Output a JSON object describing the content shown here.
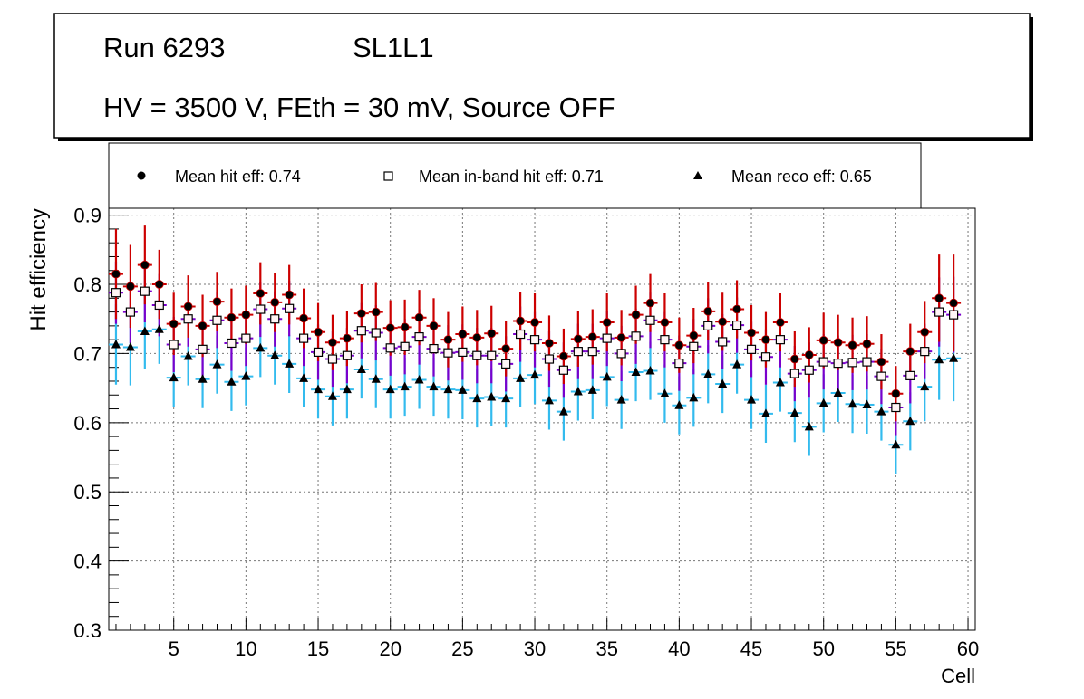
{
  "header": {
    "run_label": "Run 6293",
    "layer_label": "SL1L1",
    "conditions": "HV = 3500 V, FEth = 30 mV, Source OFF"
  },
  "legend": {
    "hit_label": "Mean hit  eff: 0.74",
    "inband_label": "Mean in-band hit eff: 0.71",
    "reco_label": "Mean reco eff: 0.65"
  },
  "chart_data": {
    "type": "scatter",
    "title": "Run 6293 SL1L1",
    "xlabel": "Cell",
    "ylabel": "Hit efficiency",
    "xlim": [
      0.5,
      60.5
    ],
    "ylim": [
      0.3,
      0.91
    ],
    "xticks": [
      5,
      10,
      15,
      20,
      25,
      30,
      35,
      40,
      45,
      50,
      55,
      60
    ],
    "yticks": [
      0.3,
      0.4,
      0.5,
      0.6,
      0.7,
      0.8,
      0.9
    ],
    "x": [
      1,
      2,
      3,
      4,
      5,
      6,
      7,
      8,
      9,
      10,
      11,
      12,
      13,
      14,
      15,
      16,
      17,
      18,
      19,
      20,
      21,
      22,
      23,
      24,
      25,
      26,
      27,
      28,
      29,
      30,
      31,
      32,
      33,
      34,
      35,
      36,
      37,
      38,
      39,
      40,
      41,
      42,
      43,
      44,
      45,
      46,
      47,
      48,
      49,
      50,
      51,
      52,
      53,
      54,
      55,
      56,
      57,
      58,
      59
    ],
    "series": [
      {
        "name": "Mean hit  eff: 0.74",
        "marker": "circle",
        "color": "#000000",
        "error_color": "#cc0000",
        "values": [
          0.815,
          0.797,
          0.828,
          0.8,
          0.743,
          0.768,
          0.74,
          0.775,
          0.752,
          0.756,
          0.787,
          0.774,
          0.785,
          0.751,
          0.731,
          0.716,
          0.722,
          0.758,
          0.76,
          0.737,
          0.738,
          0.752,
          0.74,
          0.72,
          0.728,
          0.723,
          0.729,
          0.707,
          0.747,
          0.745,
          0.715,
          0.696,
          0.721,
          0.724,
          0.745,
          0.723,
          0.756,
          0.773,
          0.745,
          0.712,
          0.726,
          0.761,
          0.746,
          0.764,
          0.73,
          0.72,
          0.745,
          0.692,
          0.698,
          0.719,
          0.716,
          0.712,
          0.714,
          0.688,
          0.642,
          0.703,
          0.731,
          0.78,
          0.773
        ],
        "errors": [
          0.065,
          0.06,
          0.057,
          0.05,
          0.045,
          0.045,
          0.045,
          0.043,
          0.042,
          0.042,
          0.045,
          0.043,
          0.043,
          0.043,
          0.042,
          0.04,
          0.04,
          0.042,
          0.042,
          0.04,
          0.04,
          0.04,
          0.04,
          0.04,
          0.04,
          0.04,
          0.04,
          0.04,
          0.042,
          0.042,
          0.04,
          0.04,
          0.04,
          0.04,
          0.042,
          0.04,
          0.042,
          0.042,
          0.042,
          0.04,
          0.04,
          0.042,
          0.042,
          0.042,
          0.04,
          0.04,
          0.042,
          0.04,
          0.04,
          0.04,
          0.04,
          0.04,
          0.04,
          0.04,
          0.04,
          0.04,
          0.045,
          0.063,
          0.07
        ]
      },
      {
        "name": "Mean in-band hit eff: 0.71",
        "marker": "open-square",
        "color": "#000000",
        "error_color": "#7a00cc",
        "values": [
          0.788,
          0.76,
          0.79,
          0.77,
          0.713,
          0.75,
          0.706,
          0.748,
          0.715,
          0.722,
          0.764,
          0.75,
          0.765,
          0.722,
          0.702,
          0.692,
          0.697,
          0.733,
          0.73,
          0.708,
          0.71,
          0.724,
          0.707,
          0.701,
          0.702,
          0.697,
          0.697,
          0.685,
          0.728,
          0.72,
          0.692,
          0.676,
          0.703,
          0.703,
          0.722,
          0.7,
          0.725,
          0.748,
          0.72,
          0.686,
          0.71,
          0.74,
          0.717,
          0.741,
          0.706,
          0.695,
          0.72,
          0.671,
          0.676,
          0.688,
          0.686,
          0.687,
          0.688,
          0.667,
          0.622,
          0.668,
          0.703,
          0.76,
          0.756
        ],
        "errors": [
          0.045,
          0.045,
          0.045,
          0.045,
          0.04,
          0.04,
          0.04,
          0.04,
          0.04,
          0.04,
          0.04,
          0.04,
          0.04,
          0.04,
          0.04,
          0.04,
          0.04,
          0.04,
          0.04,
          0.04,
          0.04,
          0.04,
          0.04,
          0.04,
          0.04,
          0.04,
          0.04,
          0.04,
          0.04,
          0.04,
          0.04,
          0.04,
          0.04,
          0.04,
          0.04,
          0.04,
          0.04,
          0.04,
          0.04,
          0.04,
          0.04,
          0.04,
          0.04,
          0.04,
          0.04,
          0.04,
          0.04,
          0.04,
          0.04,
          0.04,
          0.04,
          0.04,
          0.04,
          0.04,
          0.04,
          0.04,
          0.04,
          0.05,
          0.055
        ]
      },
      {
        "name": "Mean reco eff: 0.65",
        "marker": "triangle",
        "color": "#000000",
        "error_color": "#33bbee",
        "values": [
          0.713,
          0.709,
          0.732,
          0.735,
          0.665,
          0.696,
          0.663,
          0.684,
          0.659,
          0.667,
          0.708,
          0.697,
          0.685,
          0.664,
          0.648,
          0.638,
          0.648,
          0.677,
          0.663,
          0.648,
          0.652,
          0.662,
          0.652,
          0.648,
          0.647,
          0.635,
          0.637,
          0.635,
          0.664,
          0.669,
          0.632,
          0.616,
          0.645,
          0.647,
          0.666,
          0.633,
          0.673,
          0.675,
          0.642,
          0.625,
          0.636,
          0.67,
          0.656,
          0.684,
          0.633,
          0.613,
          0.658,
          0.614,
          0.594,
          0.628,
          0.643,
          0.627,
          0.626,
          0.616,
          0.568,
          0.602,
          0.652,
          0.691,
          0.693
        ],
        "errors": [
          0.058,
          0.055,
          0.055,
          0.05,
          0.042,
          0.042,
          0.042,
          0.042,
          0.042,
          0.042,
          0.042,
          0.042,
          0.042,
          0.042,
          0.042,
          0.042,
          0.042,
          0.042,
          0.042,
          0.042,
          0.042,
          0.042,
          0.042,
          0.042,
          0.042,
          0.042,
          0.042,
          0.042,
          0.042,
          0.042,
          0.042,
          0.042,
          0.042,
          0.042,
          0.042,
          0.042,
          0.042,
          0.042,
          0.042,
          0.042,
          0.042,
          0.042,
          0.042,
          0.042,
          0.042,
          0.042,
          0.042,
          0.042,
          0.042,
          0.042,
          0.042,
          0.042,
          0.042,
          0.042,
          0.042,
          0.042,
          0.05,
          0.058,
          0.062
        ]
      }
    ],
    "grid": true,
    "legend_position": "top"
  }
}
